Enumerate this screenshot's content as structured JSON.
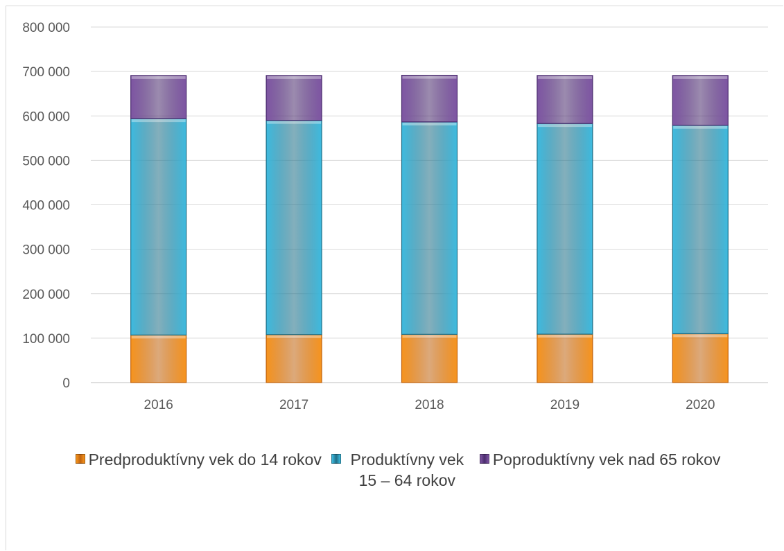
{
  "chart_data": {
    "type": "bar",
    "stacked": true,
    "categories": [
      "2016",
      "2017",
      "2018",
      "2019",
      "2020"
    ],
    "series": [
      {
        "name": "Predproduktívny vek do 14 rokov",
        "values": [
          107000,
          108000,
          108500,
          109000,
          110000
        ]
      },
      {
        "name": "Produktívny vek 15 – 64 rokov",
        "values": [
          487000,
          482000,
          478000,
          474000,
          469000
        ]
      },
      {
        "name": "Poproduktívny vek nad 65 rokov",
        "values": [
          97000,
          101000,
          105000,
          108000,
          112000
        ]
      }
    ],
    "yticks": [
      "0",
      "100 000",
      "200 000",
      "300 000",
      "400 000",
      "500 000",
      "600 000",
      "700 000",
      "800 000"
    ],
    "ylim": [
      0,
      800000
    ],
    "grid": true,
    "legend_position": "bottom",
    "colors": [
      "#f7941d",
      "#3dbbe0",
      "#7e55a3"
    ],
    "edge_colors": [
      "#c0630f",
      "#1f6e86",
      "#4a2c6d"
    ]
  }
}
